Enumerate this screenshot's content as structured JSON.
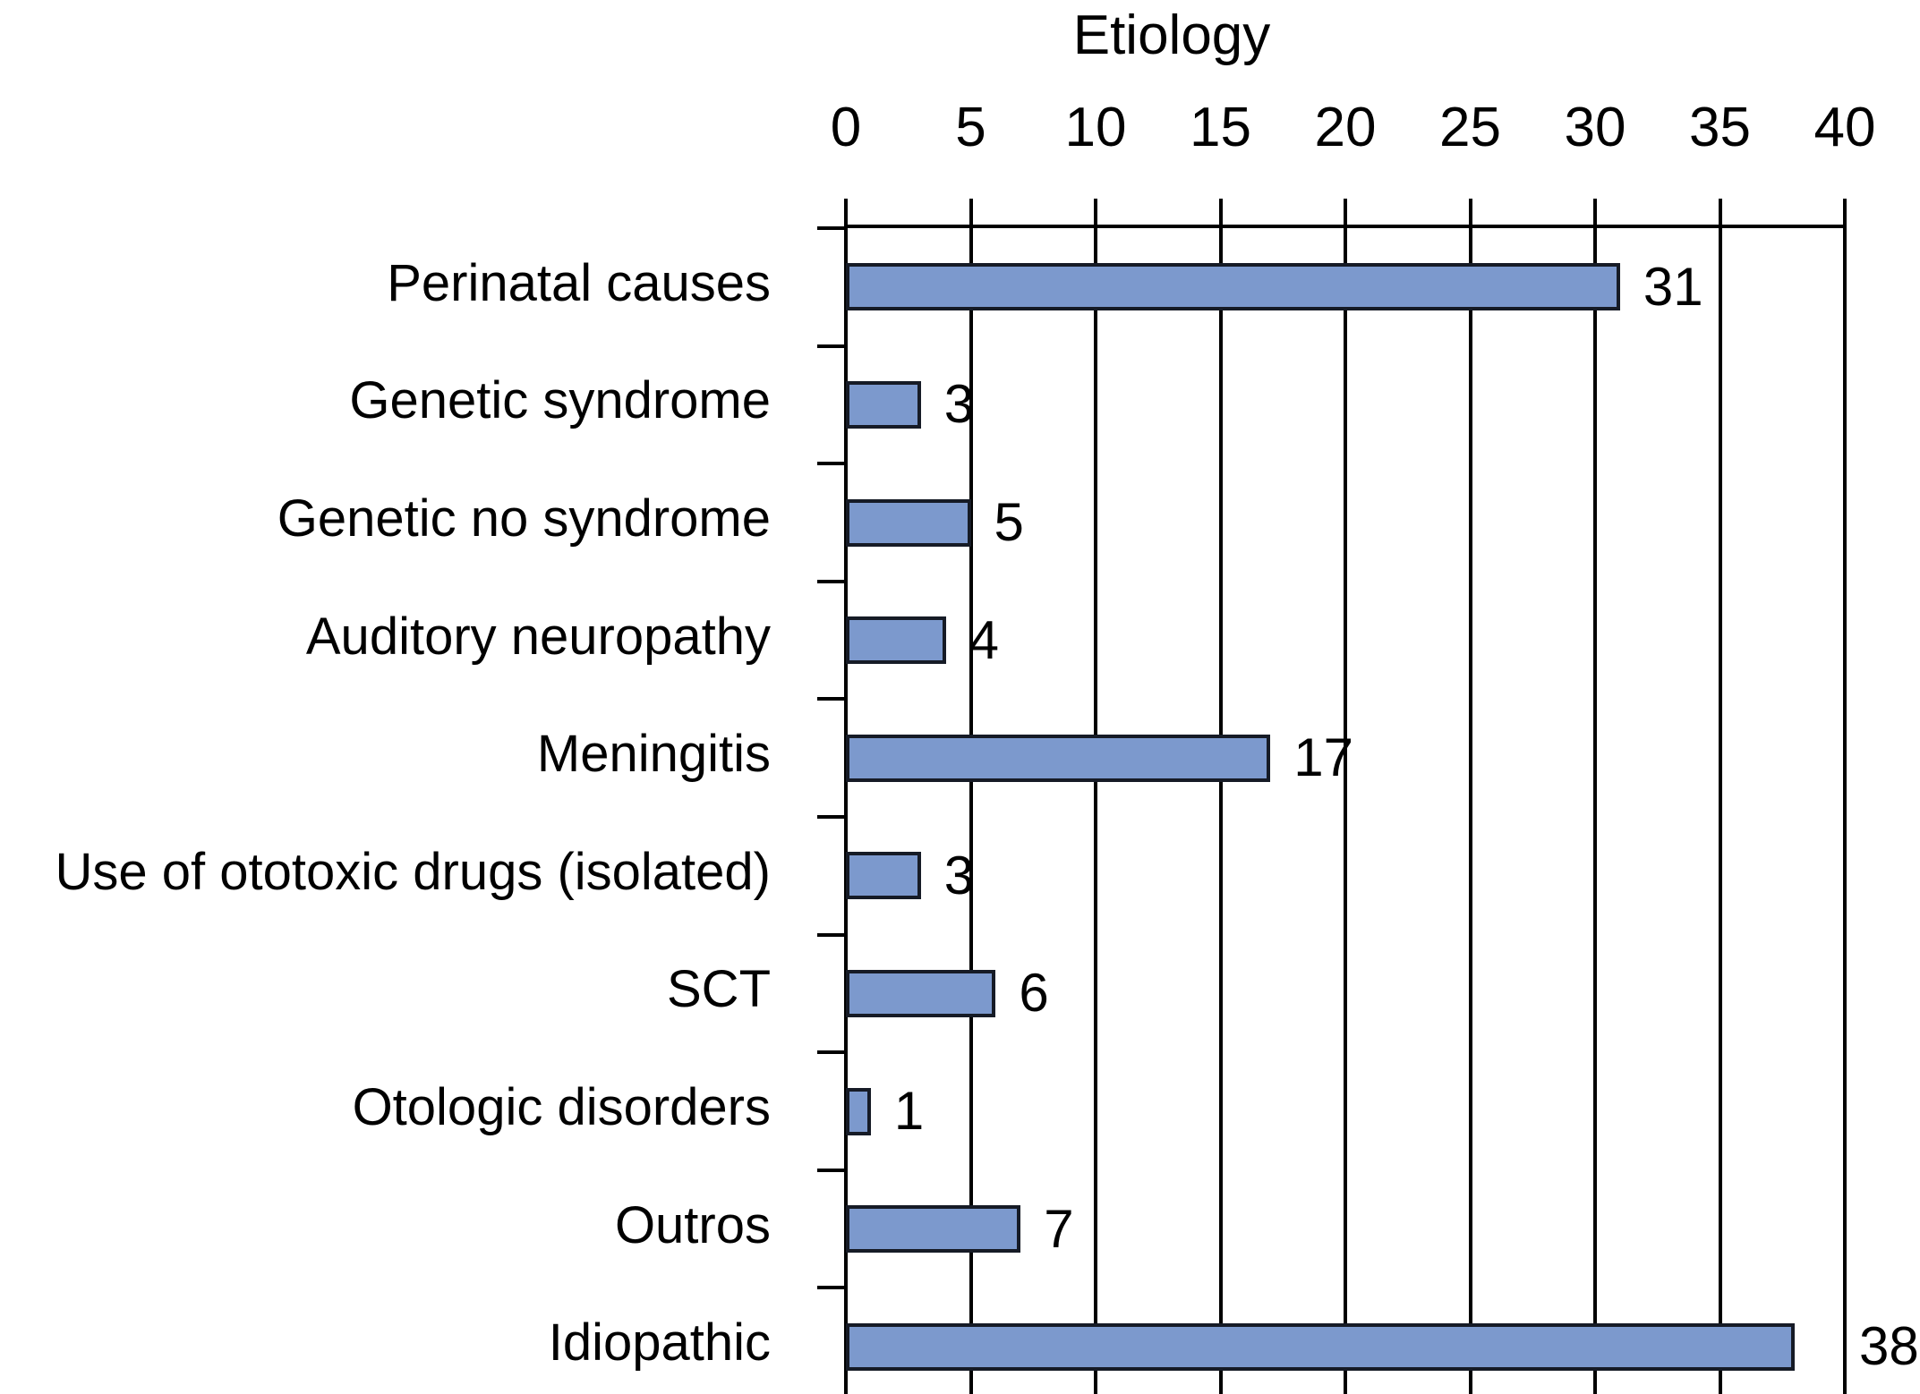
{
  "chart_data": {
    "type": "bar",
    "orientation": "horizontal",
    "title": "Etiology",
    "categories": [
      "Perinatal causes",
      "Genetic syndrome",
      "Genetic no syndrome",
      "Auditory neuropathy",
      "Meningitis",
      "Use of ototoxic drugs (isolated)",
      "SCT",
      "Otologic disorders",
      "Outros",
      "Idiopathic"
    ],
    "values": [
      31,
      3,
      5,
      4,
      17,
      3,
      6,
      1,
      7,
      38
    ],
    "value_labels": [
      "31",
      "3",
      "5",
      "4",
      "17",
      "3",
      "6",
      "1",
      "7",
      "38"
    ],
    "x_ticks": [
      "0",
      "5",
      "10",
      "15",
      "20",
      "25",
      "30",
      "35",
      "40"
    ],
    "xlim": [
      0,
      40
    ],
    "grid": true,
    "legend": "none",
    "bar_color": "#7C99CD",
    "bar_border_color": "#161B26",
    "axis_color": "#000000",
    "text_color": "#000000",
    "background_color": "#FFFFFF"
  }
}
